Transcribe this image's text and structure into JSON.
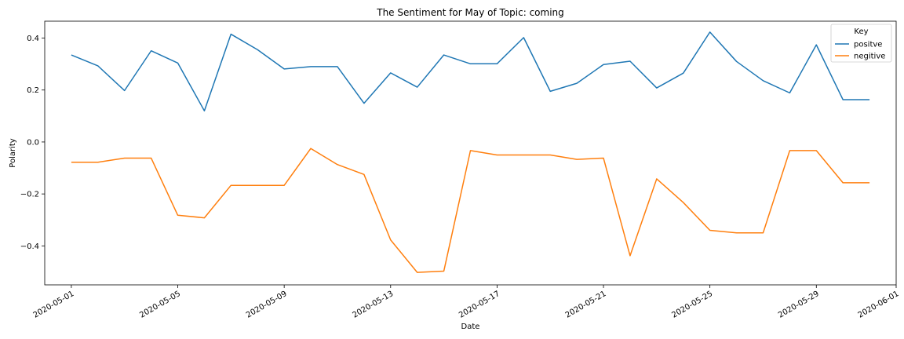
{
  "chart_data": {
    "type": "line",
    "title": "The Sentiment for May of Topic: coming",
    "xlabel": "Date",
    "ylabel": "Polarity",
    "x_start": "2020-05-01",
    "x": [
      "2020-05-01",
      "2020-05-02",
      "2020-05-03",
      "2020-05-04",
      "2020-05-05",
      "2020-05-06",
      "2020-05-07",
      "2020-05-08",
      "2020-05-09",
      "2020-05-10",
      "2020-05-11",
      "2020-05-12",
      "2020-05-13",
      "2020-05-14",
      "2020-05-15",
      "2020-05-16",
      "2020-05-17",
      "2020-05-18",
      "2020-05-19",
      "2020-05-20",
      "2020-05-21",
      "2020-05-22",
      "2020-05-23",
      "2020-05-24",
      "2020-05-25",
      "2020-05-26",
      "2020-05-27",
      "2020-05-28",
      "2020-05-29",
      "2020-05-30",
      "2020-05-31"
    ],
    "xlim": [
      "2020-04-30",
      "2020-06-01"
    ],
    "xticks": [
      "2020-05-01",
      "2020-05-05",
      "2020-05-09",
      "2020-05-13",
      "2020-05-17",
      "2020-05-21",
      "2020-05-25",
      "2020-05-29",
      "2020-06-01"
    ],
    "ylim": [
      -0.55,
      0.465
    ],
    "yticks": [
      0.4,
      0.2,
      0.0,
      -0.2,
      -0.4
    ],
    "ytick_labels": [
      "0.4",
      "0.2",
      "0.0",
      "−0.2",
      "−0.4"
    ],
    "legend": {
      "title": "Key",
      "placement": "top-right"
    },
    "series": [
      {
        "name": "positve",
        "color": "#1f77b4",
        "values": [
          0.335,
          0.293,
          0.198,
          0.351,
          0.304,
          0.12,
          0.415,
          0.355,
          0.281,
          0.29,
          0.29,
          0.149,
          0.266,
          0.211,
          0.335,
          0.301,
          0.301,
          0.402,
          0.195,
          0.226,
          0.298,
          0.311,
          0.208,
          0.265,
          0.423,
          0.31,
          0.236,
          0.189,
          0.374,
          0.163,
          0.163
        ]
      },
      {
        "name": "negitive",
        "color": "#ff7f0e",
        "values": [
          -0.078,
          -0.078,
          -0.062,
          -0.062,
          -0.282,
          -0.292,
          -0.167,
          -0.167,
          -0.167,
          -0.025,
          -0.087,
          -0.125,
          -0.377,
          -0.502,
          -0.497,
          -0.033,
          -0.05,
          -0.05,
          -0.05,
          -0.067,
          -0.062,
          -0.438,
          -0.142,
          -0.233,
          -0.34,
          -0.35,
          -0.35,
          -0.033,
          -0.033,
          -0.157,
          -0.157
        ]
      }
    ]
  }
}
